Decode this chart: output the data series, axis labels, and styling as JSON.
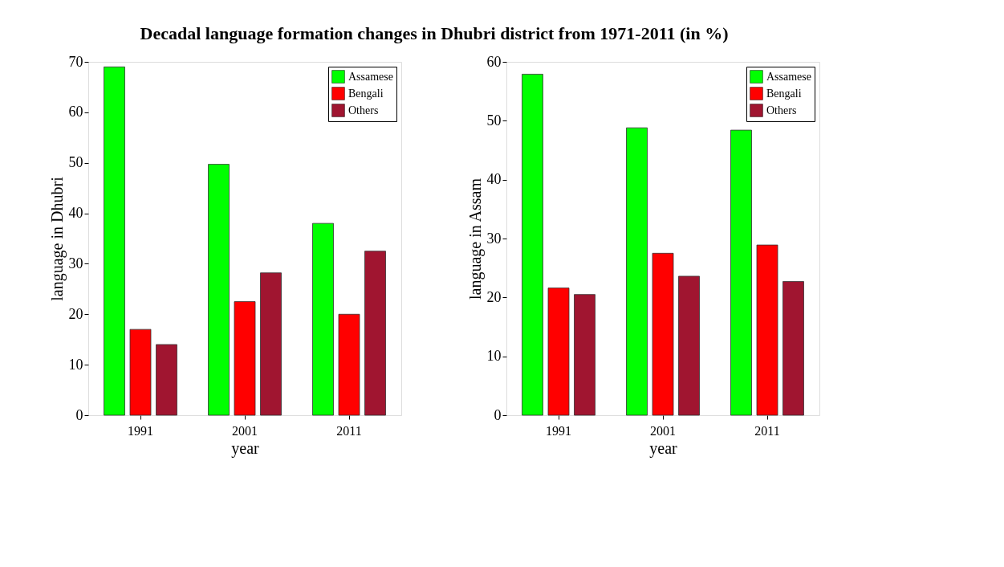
{
  "chart_data": [
    {
      "type": "bar",
      "title": "Decadal language formation changes in Dhubri district from 1971-2011 (in %)",
      "xlabel": "year",
      "ylabel": "language in Dhubri",
      "categories": [
        "1991",
        "2001",
        "2011"
      ],
      "ylim": [
        0,
        70
      ],
      "yticks": [
        0,
        10,
        20,
        30,
        40,
        50,
        60,
        70
      ],
      "grid": false,
      "legend": "top right",
      "series": [
        {
          "name": "Assamese",
          "color": "#00ff00",
          "values": [
            69.0,
            49.7,
            38.0
          ]
        },
        {
          "name": "Bengali",
          "color": "#ff0000",
          "values": [
            17.0,
            22.5,
            20.0
          ]
        },
        {
          "name": "Others",
          "color": "#a01530",
          "values": [
            14.0,
            28.2,
            32.5
          ]
        }
      ]
    },
    {
      "type": "bar",
      "xlabel": "year",
      "ylabel": "language in Assam",
      "categories": [
        "1991",
        "2001",
        "2011"
      ],
      "ylim": [
        0,
        60
      ],
      "yticks": [
        0,
        10,
        20,
        30,
        40,
        50,
        60
      ],
      "grid": false,
      "legend": "top right",
      "series": [
        {
          "name": "Assamese",
          "color": "#00ff00",
          "values": [
            57.9,
            48.8,
            48.4
          ]
        },
        {
          "name": "Bengali",
          "color": "#ff0000",
          "values": [
            21.6,
            27.5,
            28.9
          ]
        },
        {
          "name": "Others",
          "color": "#a01530",
          "values": [
            20.5,
            23.6,
            22.7
          ]
        }
      ]
    }
  ]
}
